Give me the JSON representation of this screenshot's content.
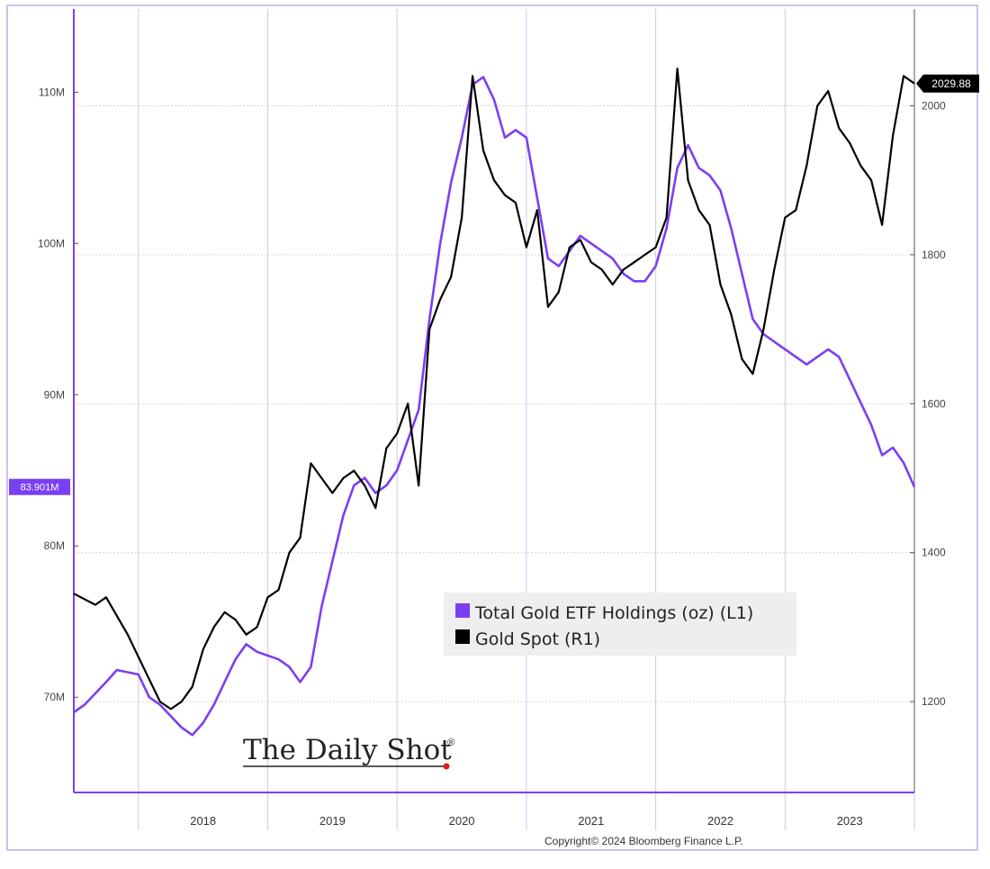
{
  "chart_data": {
    "type": "line",
    "title": "",
    "x_range": [
      "2017-07",
      "2024-01"
    ],
    "x_tick_labels": [
      "2018",
      "2019",
      "2020",
      "2021",
      "2022",
      "2023"
    ],
    "left_axis": {
      "tick_labels": [
        "70M",
        "80M",
        "90M",
        "100M",
        "110M"
      ],
      "ticks": [
        70,
        80,
        90,
        100,
        110
      ],
      "range": [
        63.7,
        115.5
      ],
      "unit": "M"
    },
    "right_axis": {
      "tick_labels": [
        "1200",
        "1400",
        "1600",
        "1800",
        "2000"
      ],
      "ticks": [
        1200,
        1400,
        1600,
        1800,
        2000
      ],
      "range": [
        1078,
        2130
      ]
    },
    "grid": true,
    "legend_position": "bottom-right",
    "series": [
      {
        "name": "Total Gold ETF Holdings (oz) (L1)",
        "axis": "left",
        "color": "#7b3ff2",
        "last_value_label": "83.901M",
        "last_value": 83.9,
        "points": [
          [
            "2017-07",
            69.0
          ],
          [
            "2017-08",
            69.5
          ],
          [
            "2017-10",
            71.0
          ],
          [
            "2017-11",
            71.8
          ],
          [
            "2018-01",
            71.5
          ],
          [
            "2018-02",
            70.0
          ],
          [
            "2018-03",
            69.5
          ],
          [
            "2018-05",
            68.0
          ],
          [
            "2018-06",
            67.5
          ],
          [
            "2018-07",
            68.3
          ],
          [
            "2018-08",
            69.5
          ],
          [
            "2018-09",
            71.0
          ],
          [
            "2018-10",
            72.5
          ],
          [
            "2018-11",
            73.5
          ],
          [
            "2018-12",
            73.0
          ],
          [
            "2019-02",
            72.5
          ],
          [
            "2019-03",
            72.0
          ],
          [
            "2019-04",
            71.0
          ],
          [
            "2019-05",
            72.0
          ],
          [
            "2019-06",
            76.0
          ],
          [
            "2019-07",
            79.0
          ],
          [
            "2019-08",
            82.0
          ],
          [
            "2019-09",
            84.0
          ],
          [
            "2019-10",
            84.5
          ],
          [
            "2019-11",
            83.5
          ],
          [
            "2019-12",
            84.0
          ],
          [
            "2020-01",
            85.0
          ],
          [
            "2020-02",
            87.0
          ],
          [
            "2020-03",
            89.0
          ],
          [
            "2020-04",
            95.0
          ],
          [
            "2020-05",
            100.0
          ],
          [
            "2020-06",
            104.0
          ],
          [
            "2020-07",
            107.0
          ],
          [
            "2020-08",
            110.5
          ],
          [
            "2020-09",
            111.0
          ],
          [
            "2020-10",
            109.5
          ],
          [
            "2020-11",
            107.0
          ],
          [
            "2020-12",
            107.5
          ],
          [
            "2021-01",
            107.0
          ],
          [
            "2021-02",
            103.0
          ],
          [
            "2021-03",
            99.0
          ],
          [
            "2021-04",
            98.5
          ],
          [
            "2021-05",
            99.5
          ],
          [
            "2021-06",
            100.5
          ],
          [
            "2021-07",
            100.0
          ],
          [
            "2021-08",
            99.5
          ],
          [
            "2021-09",
            99.0
          ],
          [
            "2021-10",
            98.0
          ],
          [
            "2021-11",
            97.5
          ],
          [
            "2021-12",
            97.5
          ],
          [
            "2022-01",
            98.5
          ],
          [
            "2022-02",
            101.0
          ],
          [
            "2022-03",
            105.0
          ],
          [
            "2022-04",
            106.5
          ],
          [
            "2022-05",
            105.0
          ],
          [
            "2022-06",
            104.5
          ],
          [
            "2022-07",
            103.5
          ],
          [
            "2022-08",
            101.0
          ],
          [
            "2022-09",
            98.0
          ],
          [
            "2022-10",
            95.0
          ],
          [
            "2022-11",
            94.0
          ],
          [
            "2022-12",
            93.5
          ],
          [
            "2023-01",
            93.0
          ],
          [
            "2023-02",
            92.5
          ],
          [
            "2023-03",
            92.0
          ],
          [
            "2023-04",
            92.5
          ],
          [
            "2023-05",
            93.0
          ],
          [
            "2023-06",
            92.5
          ],
          [
            "2023-07",
            91.0
          ],
          [
            "2023-08",
            89.5
          ],
          [
            "2023-09",
            88.0
          ],
          [
            "2023-10",
            86.0
          ],
          [
            "2023-11",
            86.5
          ],
          [
            "2023-12",
            85.5
          ],
          [
            "2024-01",
            83.9
          ]
        ]
      },
      {
        "name": "Gold Spot (R1)",
        "axis": "right",
        "color": "#000000",
        "last_value_label": "2029.88",
        "last_value": 2029.88,
        "points": [
          [
            "2017-07",
            1345
          ],
          [
            "2017-09",
            1330
          ],
          [
            "2017-10",
            1340
          ],
          [
            "2017-12",
            1290
          ],
          [
            "2018-01",
            1260
          ],
          [
            "2018-02",
            1230
          ],
          [
            "2018-03",
            1200
          ],
          [
            "2018-04",
            1190
          ],
          [
            "2018-05",
            1200
          ],
          [
            "2018-06",
            1220
          ],
          [
            "2018-07",
            1270
          ],
          [
            "2018-08",
            1300
          ],
          [
            "2018-09",
            1320
          ],
          [
            "2018-10",
            1310
          ],
          [
            "2018-11",
            1290
          ],
          [
            "2018-12",
            1300
          ],
          [
            "2019-01",
            1340
          ],
          [
            "2019-02",
            1350
          ],
          [
            "2019-03",
            1400
          ],
          [
            "2019-04",
            1420
          ],
          [
            "2019-05",
            1520
          ],
          [
            "2019-06",
            1500
          ],
          [
            "2019-07",
            1480
          ],
          [
            "2019-08",
            1500
          ],
          [
            "2019-09",
            1510
          ],
          [
            "2019-10",
            1490
          ],
          [
            "2019-11",
            1460
          ],
          [
            "2019-12",
            1540
          ],
          [
            "2020-01",
            1560
          ],
          [
            "2020-02",
            1600
          ],
          [
            "2020-03",
            1490
          ],
          [
            "2020-04",
            1700
          ],
          [
            "2020-05",
            1740
          ],
          [
            "2020-06",
            1770
          ],
          [
            "2020-07",
            1850
          ],
          [
            "2020-08",
            2040
          ],
          [
            "2020-09",
            1940
          ],
          [
            "2020-10",
            1900
          ],
          [
            "2020-11",
            1880
          ],
          [
            "2020-12",
            1870
          ],
          [
            "2021-01",
            1810
          ],
          [
            "2021-02",
            1860
          ],
          [
            "2021-03",
            1730
          ],
          [
            "2021-04",
            1750
          ],
          [
            "2021-05",
            1810
          ],
          [
            "2021-06",
            1820
          ],
          [
            "2021-07",
            1790
          ],
          [
            "2021-08",
            1780
          ],
          [
            "2021-09",
            1760
          ],
          [
            "2021-10",
            1780
          ],
          [
            "2021-11",
            1790
          ],
          [
            "2021-12",
            1800
          ],
          [
            "2022-01",
            1810
          ],
          [
            "2022-02",
            1850
          ],
          [
            "2022-03",
            2050
          ],
          [
            "2022-04",
            1900
          ],
          [
            "2022-05",
            1860
          ],
          [
            "2022-06",
            1840
          ],
          [
            "2022-07",
            1760
          ],
          [
            "2022-08",
            1720
          ],
          [
            "2022-09",
            1660
          ],
          [
            "2022-10",
            1640
          ],
          [
            "2022-11",
            1700
          ],
          [
            "2022-12",
            1780
          ],
          [
            "2023-01",
            1850
          ],
          [
            "2023-02",
            1860
          ],
          [
            "2023-03",
            1920
          ],
          [
            "2023-04",
            2000
          ],
          [
            "2023-05",
            2020
          ],
          [
            "2023-06",
            1970
          ],
          [
            "2023-07",
            1950
          ],
          [
            "2023-08",
            1920
          ],
          [
            "2023-09",
            1900
          ],
          [
            "2023-10",
            1840
          ],
          [
            "2023-11",
            1960
          ],
          [
            "2023-12",
            2040
          ],
          [
            "2024-01",
            2030
          ]
        ]
      }
    ]
  },
  "legend": {
    "items": [
      {
        "label": "Total Gold ETF Holdings (oz) (L1)",
        "color": "#7b3ff2"
      },
      {
        "label": "Gold Spot (R1)",
        "color": "#000000"
      }
    ]
  },
  "watermark": {
    "text": "The Daily Shot",
    "mark": "®",
    "dot_color": "#d81e1e"
  },
  "copyright": "Copyright© 2024 Bloomberg Finance L.P.",
  "colors": {
    "purple": "#7b3ff2",
    "black": "#000000",
    "grid": "#d6d6d6"
  }
}
